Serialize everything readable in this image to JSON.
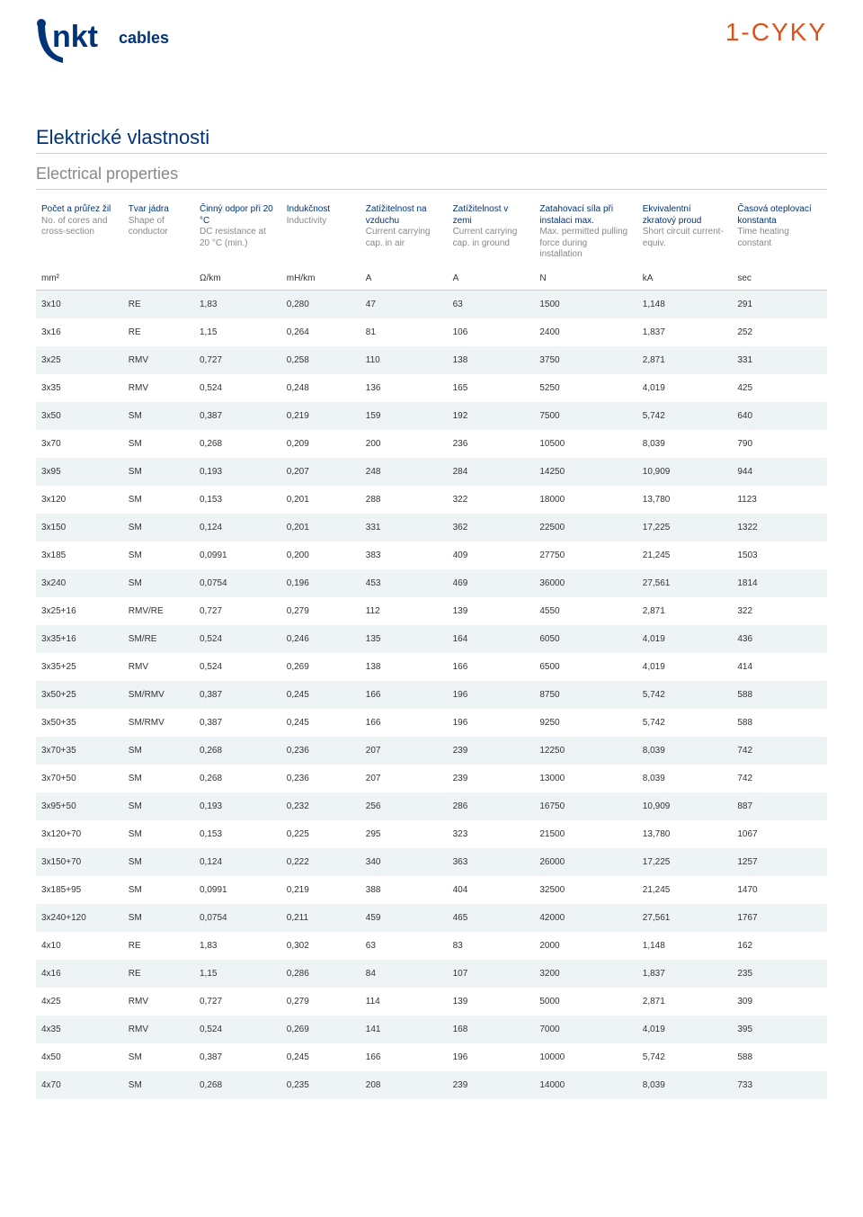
{
  "doc_code": "1-CYKY",
  "section_title_cz": "Elektrické vlastnosti",
  "section_title_en": "Electrical properties",
  "colors": {
    "brand_blue": "#003478",
    "accent_orange": "#d9531e",
    "row_alt": "#eef3f5",
    "grey_text": "#888888",
    "body_text": "#333333"
  },
  "table": {
    "headers": [
      {
        "cz": "Počet a průřez žil",
        "en": "No. of cores and cross-section"
      },
      {
        "cz": "Tvar jádra",
        "en": "Shape of conductor"
      },
      {
        "cz": "Činný odpor při 20 °C",
        "en": "DC resistance at 20 °C (min.)"
      },
      {
        "cz": "Indukčnost",
        "en": "Inductivity"
      },
      {
        "cz": "Zatížitelnost na vzduchu",
        "en": "Current carrying cap. in air"
      },
      {
        "cz": "Zatížitelnost v zemi",
        "en": "Current carrying cap. in ground"
      },
      {
        "cz": "Zatahovací síla při instalaci max.",
        "en": "Max. permitted pulling force during installation"
      },
      {
        "cz": "Ekvivalentní zkratový proud",
        "en": "Short circuit current-equiv."
      },
      {
        "cz": "Časová oteplovací konstanta",
        "en": "Time heating constant"
      }
    ],
    "units": [
      "mm²",
      "",
      "Ω/km",
      "mH/km",
      "A",
      "A",
      "N",
      "kA",
      "sec"
    ],
    "rows": [
      [
        "3x10",
        "RE",
        "1,83",
        "0,280",
        "47",
        "63",
        "1500",
        "1,148",
        "291"
      ],
      [
        "3x16",
        "RE",
        "1,15",
        "0,264",
        "81",
        "106",
        "2400",
        "1,837",
        "252"
      ],
      [
        "3x25",
        "RMV",
        "0,727",
        "0,258",
        "110",
        "138",
        "3750",
        "2,871",
        "331"
      ],
      [
        "3x35",
        "RMV",
        "0,524",
        "0,248",
        "136",
        "165",
        "5250",
        "4,019",
        "425"
      ],
      [
        "3x50",
        "SM",
        "0,387",
        "0,219",
        "159",
        "192",
        "7500",
        "5,742",
        "640"
      ],
      [
        "3x70",
        "SM",
        "0,268",
        "0,209",
        "200",
        "236",
        "10500",
        "8,039",
        "790"
      ],
      [
        "3x95",
        "SM",
        "0,193",
        "0,207",
        "248",
        "284",
        "14250",
        "10,909",
        "944"
      ],
      [
        "3x120",
        "SM",
        "0,153",
        "0,201",
        "288",
        "322",
        "18000",
        "13,780",
        "1123"
      ],
      [
        "3x150",
        "SM",
        "0,124",
        "0,201",
        "331",
        "362",
        "22500",
        "17,225",
        "1322"
      ],
      [
        "3x185",
        "SM",
        "0,0991",
        "0,200",
        "383",
        "409",
        "27750",
        "21,245",
        "1503"
      ],
      [
        "3x240",
        "SM",
        "0,0754",
        "0,196",
        "453",
        "469",
        "36000",
        "27,561",
        "1814"
      ],
      [
        "3x25+16",
        "RMV/RE",
        "0,727",
        "0,279",
        "112",
        "139",
        "4550",
        "2,871",
        "322"
      ],
      [
        "3x35+16",
        "SM/RE",
        "0,524",
        "0,246",
        "135",
        "164",
        "6050",
        "4,019",
        "436"
      ],
      [
        "3x35+25",
        "RMV",
        "0,524",
        "0,269",
        "138",
        "166",
        "6500",
        "4,019",
        "414"
      ],
      [
        "3x50+25",
        "SM/RMV",
        "0,387",
        "0,245",
        "166",
        "196",
        "8750",
        "5,742",
        "588"
      ],
      [
        "3x50+35",
        "SM/RMV",
        "0,387",
        "0,245",
        "166",
        "196",
        "9250",
        "5,742",
        "588"
      ],
      [
        "3x70+35",
        "SM",
        "0,268",
        "0,236",
        "207",
        "239",
        "12250",
        "8,039",
        "742"
      ],
      [
        "3x70+50",
        "SM",
        "0,268",
        "0,236",
        "207",
        "239",
        "13000",
        "8,039",
        "742"
      ],
      [
        "3x95+50",
        "SM",
        "0,193",
        "0,232",
        "256",
        "286",
        "16750",
        "10,909",
        "887"
      ],
      [
        "3x120+70",
        "SM",
        "0,153",
        "0,225",
        "295",
        "323",
        "21500",
        "13,780",
        "1067"
      ],
      [
        "3x150+70",
        "SM",
        "0,124",
        "0,222",
        "340",
        "363",
        "26000",
        "17,225",
        "1257"
      ],
      [
        "3x185+95",
        "SM",
        "0,0991",
        "0,219",
        "388",
        "404",
        "32500",
        "21,245",
        "1470"
      ],
      [
        "3x240+120",
        "SM",
        "0,0754",
        "0,211",
        "459",
        "465",
        "42000",
        "27,561",
        "1767"
      ],
      [
        "4x10",
        "RE",
        "1,83",
        "0,302",
        "63",
        "83",
        "2000",
        "1,148",
        "162"
      ],
      [
        "4x16",
        "RE",
        "1,15",
        "0,286",
        "84",
        "107",
        "3200",
        "1,837",
        "235"
      ],
      [
        "4x25",
        "RMV",
        "0,727",
        "0,279",
        "114",
        "139",
        "5000",
        "2,871",
        "309"
      ],
      [
        "4x35",
        "RMV",
        "0,524",
        "0,269",
        "141",
        "168",
        "7000",
        "4,019",
        "395"
      ],
      [
        "4x50",
        "SM",
        "0,387",
        "0,245",
        "166",
        "196",
        "10000",
        "5,742",
        "588"
      ],
      [
        "4x70",
        "SM",
        "0,268",
        "0,235",
        "208",
        "239",
        "14000",
        "8,039",
        "733"
      ]
    ]
  }
}
